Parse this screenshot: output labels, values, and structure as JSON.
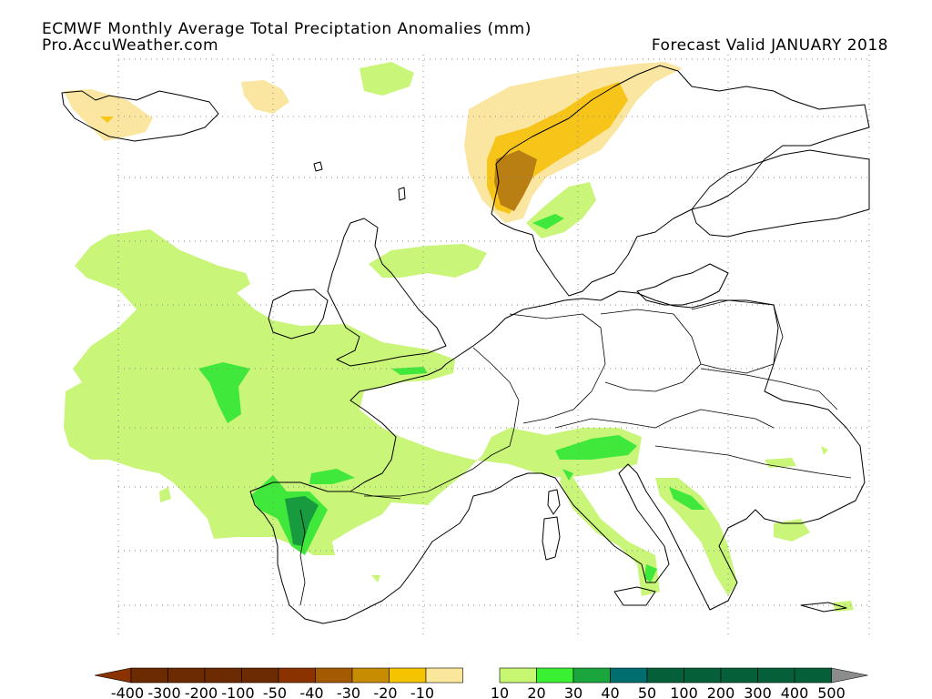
{
  "header": {
    "title": "ECMWF Monthly Average Total Preciptation Anomalies (mm)",
    "source": "Pro.AccuWeather.com",
    "valid": "Forecast Valid JANUARY 2018"
  },
  "legend": {
    "labels": [
      "-400",
      "-300",
      "-200",
      "-100",
      "-50",
      "-40",
      "-30",
      "-20",
      "-10",
      "10",
      "20",
      "30",
      "40",
      "50",
      "100",
      "200",
      "300",
      "400",
      "500"
    ],
    "colors": {
      "dry": [
        "#6b2a00",
        "#6b2a00",
        "#6b2a00",
        "#6b2a00",
        "#8b3300",
        "#a35a00",
        "#c88c00",
        "#f5c400",
        "#fae79b"
      ],
      "wet": [
        "#c7f770",
        "#39f032",
        "#1aa53d",
        "#006e6e",
        "#05603a",
        "#05603a",
        "#05603a",
        "#05603a",
        "#05603a"
      ],
      "left_arrow": "#8b3300",
      "right_arrow": "#8c8c8c"
    }
  },
  "map_colors": {
    "wet_light": "#c9f578",
    "wet_mid": "#3fe83a",
    "wet_dark": "#189a3e",
    "dry_light": "#fae6a0",
    "dry_mid": "#f7c51a",
    "dry_dark": "#b97f13",
    "coast": "#000000",
    "grid": "#8a8a8a"
  }
}
